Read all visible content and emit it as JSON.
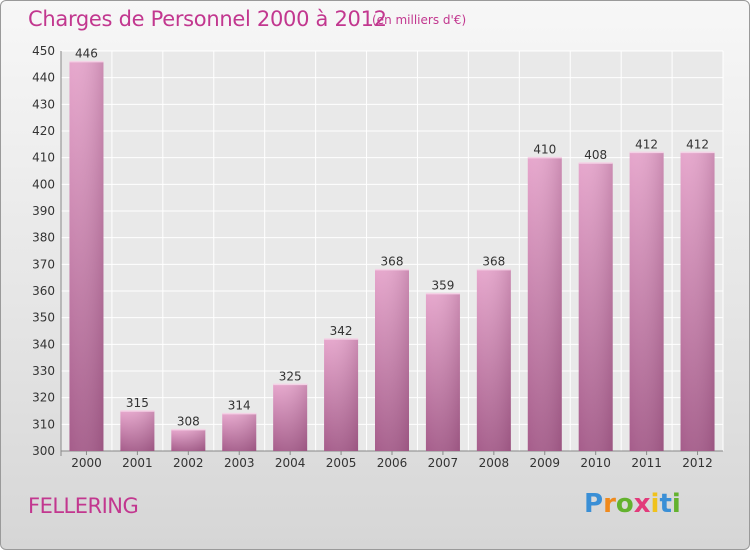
{
  "chart_data": {
    "type": "bar",
    "title": "Charges de Personnel 2000 à 2012",
    "subtitle": "(en milliers d'€)",
    "categories": [
      "2000",
      "2001",
      "2002",
      "2003",
      "2004",
      "2005",
      "2006",
      "2007",
      "2008",
      "2009",
      "2010",
      "2011",
      "2012"
    ],
    "values": [
      446,
      315,
      308,
      314,
      325,
      342,
      368,
      359,
      368,
      410,
      408,
      412,
      412
    ],
    "ylim": [
      300,
      450
    ],
    "yticks": [
      300,
      310,
      320,
      330,
      340,
      350,
      360,
      370,
      380,
      390,
      400,
      410,
      420,
      430,
      440,
      450
    ],
    "grid": true,
    "bar_color": "#d87aaf",
    "xlabel": "",
    "ylabel": ""
  },
  "commune": "FELLERING",
  "brand": {
    "letters": [
      "P",
      "r",
      "o",
      "x",
      "i",
      "t",
      "i"
    ],
    "colors": [
      "#3a8fd6",
      "#f08a1c",
      "#63b22e",
      "#e23a7a",
      "#f0c21c",
      "#3a8fd6",
      "#63b22e"
    ]
  }
}
